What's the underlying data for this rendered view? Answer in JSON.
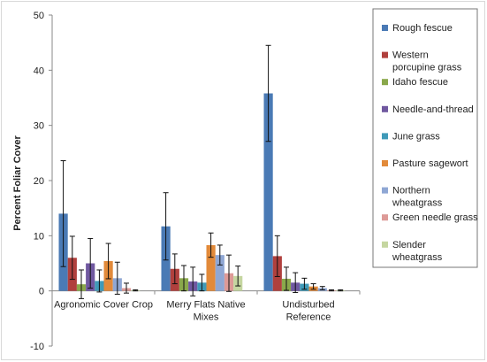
{
  "chart_data": {
    "type": "bar",
    "title": "",
    "xlabel": "",
    "ylabel": "Percent Foliar Cover",
    "ylim": [
      -10,
      50
    ],
    "yticks": [
      -10,
      0,
      10,
      20,
      30,
      40,
      50
    ],
    "grid": false,
    "legend_position": "right",
    "error_bars": true,
    "categories": [
      [
        "Agronomic Cover Crop"
      ],
      [
        "Merry Flats Native",
        "Mixes"
      ],
      [
        "Undisturbed",
        "Reference"
      ]
    ],
    "series": [
      {
        "name": "Rough fescue",
        "legend_lines": [
          "Rough fescue"
        ],
        "color": "#4a7ab5",
        "values": [
          14.0,
          11.7,
          35.8
        ],
        "errors": [
          9.6,
          6.1,
          8.7
        ]
      },
      {
        "name": "Western porcupine grass",
        "legend_lines": [
          "Western",
          "porcupine grass"
        ],
        "color": "#b0403d",
        "values": [
          6.0,
          4.0,
          6.3
        ],
        "errors": [
          3.9,
          2.7,
          3.7
        ]
      },
      {
        "name": "Idaho fescue",
        "legend_lines": [
          "Idaho fescue"
        ],
        "color": "#8aa84b",
        "values": [
          1.2,
          2.3,
          2.2
        ],
        "errors": [
          2.6,
          2.3,
          2.1
        ]
      },
      {
        "name": "Needle-and-thread",
        "legend_lines": [
          "Needle-and-thread"
        ],
        "color": "#7058a0",
        "values": [
          5.0,
          1.7,
          1.5
        ],
        "errors": [
          4.5,
          2.6,
          1.8
        ]
      },
      {
        "name": "June grass",
        "legend_lines": [
          "June grass"
        ],
        "color": "#3f9ab8",
        "values": [
          1.8,
          1.5,
          1.3
        ],
        "errors": [
          2.0,
          1.5,
          1.0
        ]
      },
      {
        "name": "Pasture sagewort",
        "legend_lines": [
          "Pasture sagewort"
        ],
        "color": "#e28a3a",
        "values": [
          5.4,
          8.3,
          0.8
        ],
        "errors": [
          3.2,
          2.2,
          0.5
        ]
      },
      {
        "name": "Northern wheatgrass",
        "legend_lines": [
          "Northern",
          "wheatgrass"
        ],
        "color": "#8fa7d4",
        "values": [
          2.3,
          6.5,
          0.5
        ],
        "errors": [
          2.9,
          1.8,
          0.3
        ]
      },
      {
        "name": "Green needle grass",
        "legend_lines": [
          "Green needle grass"
        ],
        "color": "#dd9a97",
        "values": [
          0.5,
          3.2,
          0.1
        ],
        "errors": [
          0.9,
          3.3,
          0.1
        ]
      },
      {
        "name": "Slender wheatgrass",
        "legend_lines": [
          "Slender",
          "wheatgrass"
        ],
        "color": "#c5d6a0",
        "values": [
          0.1,
          2.7,
          0.1
        ],
        "errors": [
          0.1,
          1.8,
          0.1
        ]
      }
    ]
  }
}
